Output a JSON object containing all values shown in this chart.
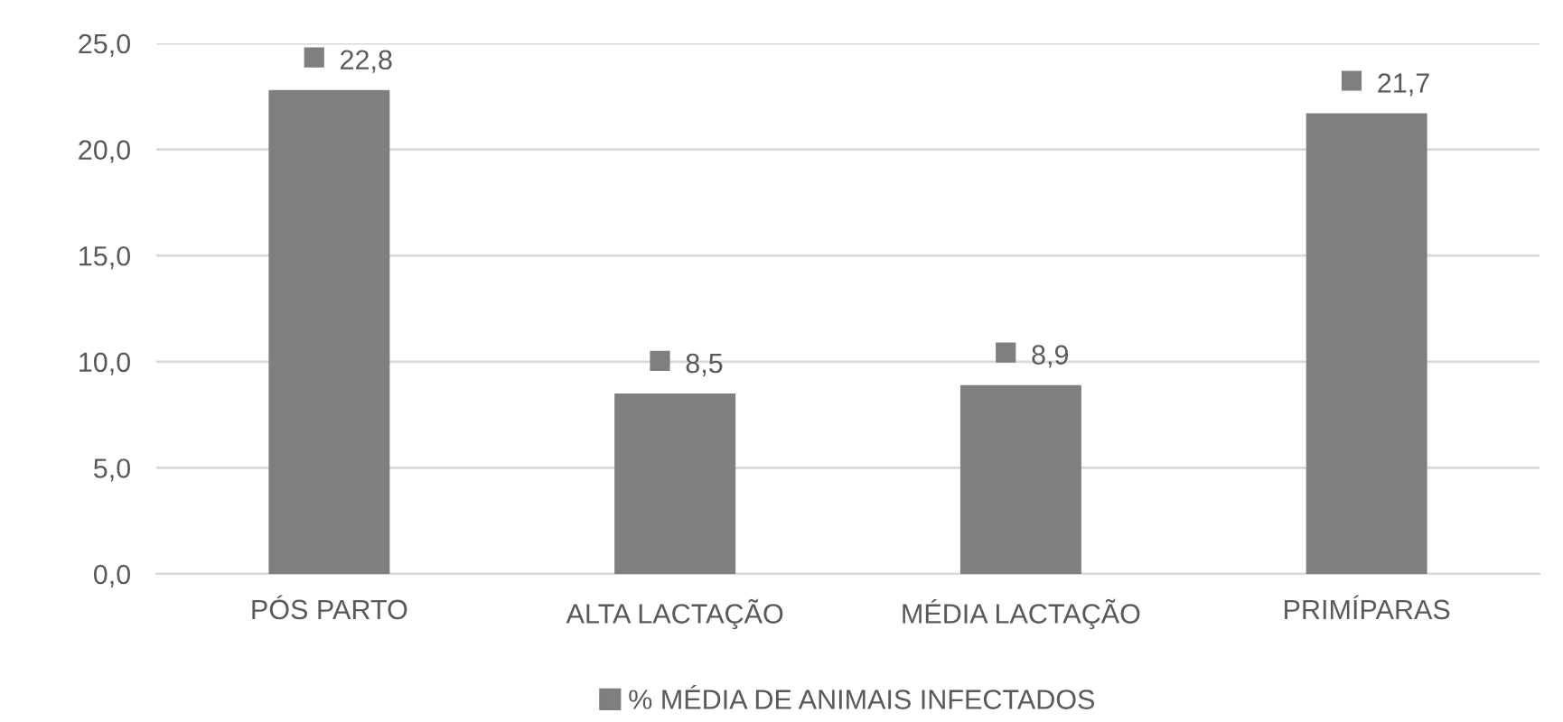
{
  "chart_data": {
    "type": "bar",
    "categories": [
      "PÓS PARTO",
      "ALTA LACTAÇÃO",
      "MÉDIA LACTAÇÃO",
      "PRIMÍPARAS"
    ],
    "series": [
      {
        "name": "% MÉDIA DE ANIMAIS INFECTADOS",
        "color": "#7f7f7f",
        "values": [
          22.8,
          8.5,
          8.9,
          21.7
        ],
        "value_labels": [
          "22,8",
          "8,5",
          "8,9",
          "21,7"
        ]
      }
    ],
    "ylim": [
      0,
      25
    ],
    "yticks": [
      {
        "value": 0,
        "label": "0,0"
      },
      {
        "value": 5,
        "label": "5,0"
      },
      {
        "value": 10,
        "label": "10,0"
      },
      {
        "value": 15,
        "label": "15,0"
      },
      {
        "value": 20,
        "label": "20,0"
      },
      {
        "value": 25,
        "label": "25,0"
      }
    ],
    "grid": "y",
    "legend": "bottom"
  }
}
